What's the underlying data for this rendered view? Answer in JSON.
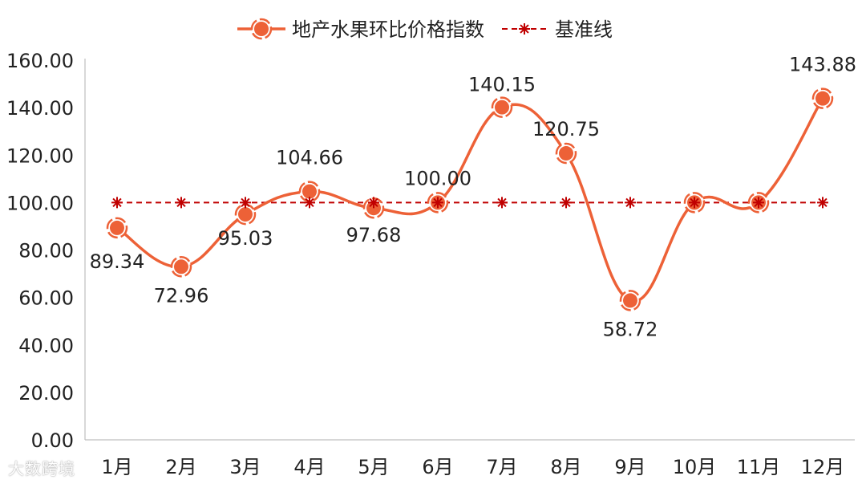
{
  "chart_data": {
    "type": "line",
    "categories": [
      "1月",
      "2月",
      "3月",
      "4月",
      "5月",
      "6月",
      "7月",
      "8月",
      "9月",
      "10月",
      "11月",
      "12月"
    ],
    "series": [
      {
        "name": "地产水果环比价格指数",
        "values": [
          89.34,
          72.96,
          95.03,
          104.66,
          97.68,
          100.0,
          140.15,
          120.75,
          58.72,
          100.0,
          100.0,
          143.88
        ],
        "labels": [
          "89.34",
          "72.96",
          "95.03",
          "104.66",
          "97.68",
          "100.00",
          "140.15",
          "120.75",
          "58.72",
          "",
          "",
          "143.88"
        ],
        "color": "#ED6137",
        "marker": "circle",
        "smooth": true
      },
      {
        "name": "基准线",
        "values": [
          100,
          100,
          100,
          100,
          100,
          100,
          100,
          100,
          100,
          100,
          100,
          100
        ],
        "color": "#C00000",
        "marker": "asterisk",
        "dashed": true
      }
    ],
    "ylim": [
      0,
      160
    ],
    "yticks": [
      "0.00",
      "20.00",
      "40.00",
      "60.00",
      "80.00",
      "100.00",
      "120.00",
      "140.00",
      "160.00"
    ],
    "grid": false,
    "legend": "top-center"
  },
  "watermark": "大数跨境"
}
